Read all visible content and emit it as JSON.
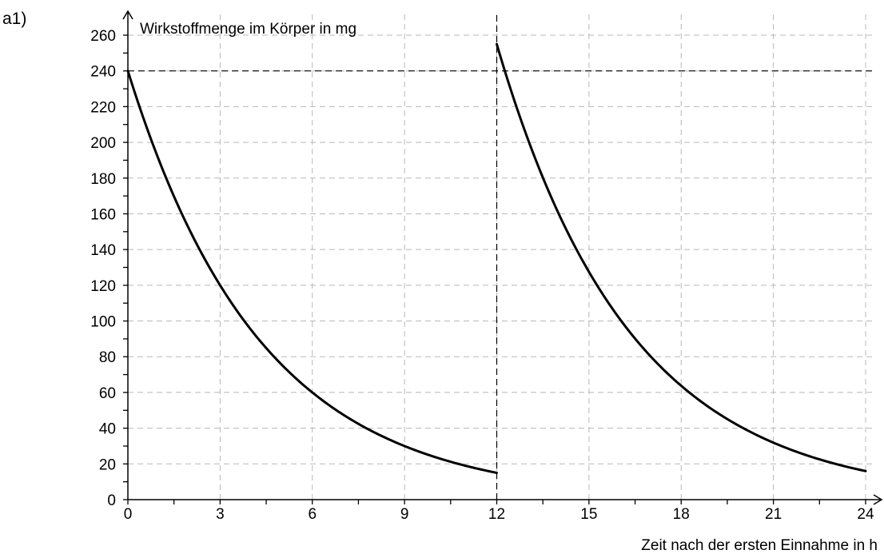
{
  "panel_label": "a1)",
  "chart_data": {
    "type": "line",
    "title": "",
    "xlabel": "Zeit nach der ersten Einnahme in h",
    "ylabel": "Wirkstoffmenge im Körper in mg",
    "xlim": [
      0,
      24
    ],
    "ylim": [
      0,
      260
    ],
    "x_ticks": [
      0,
      3,
      6,
      9,
      12,
      15,
      18,
      21,
      24
    ],
    "x_tick_labels": [
      "0",
      "3",
      "6",
      "9",
      "12",
      "15",
      "18",
      "21",
      "24"
    ],
    "y_ticks": [
      0,
      20,
      40,
      60,
      80,
      100,
      120,
      140,
      160,
      180,
      200,
      220,
      240,
      260
    ],
    "y_tick_labels": [
      "0",
      "20",
      "40",
      "60",
      "80",
      "100",
      "120",
      "140",
      "160",
      "180",
      "200",
      "220",
      "240",
      "260"
    ],
    "y_minor_step": 10,
    "x_minor_step": 1.5,
    "grid": true,
    "series": [
      {
        "x": [
          0,
          1,
          2,
          3,
          4,
          5,
          6,
          7,
          8,
          9,
          10,
          11,
          12
        ],
        "y": [
          240,
          190.5,
          151.2,
          120,
          95.2,
          75.6,
          60,
          47.6,
          37.8,
          30,
          23.8,
          18.9,
          15
        ],
        "color": "#000000"
      },
      {
        "x": [
          12,
          13,
          14,
          15,
          16,
          17,
          18,
          19,
          20,
          21,
          22,
          23,
          24
        ],
        "y": [
          255,
          202.4,
          160.6,
          127.5,
          101.2,
          80.3,
          63.75,
          50.6,
          40.2,
          31.9,
          25.3,
          20.1,
          16
        ],
        "color": "#000000"
      }
    ],
    "reference_lines": [
      {
        "orientation": "horizontal",
        "value": 240,
        "style": "dashed"
      },
      {
        "orientation": "vertical",
        "value": 12,
        "style": "dashed"
      }
    ]
  }
}
